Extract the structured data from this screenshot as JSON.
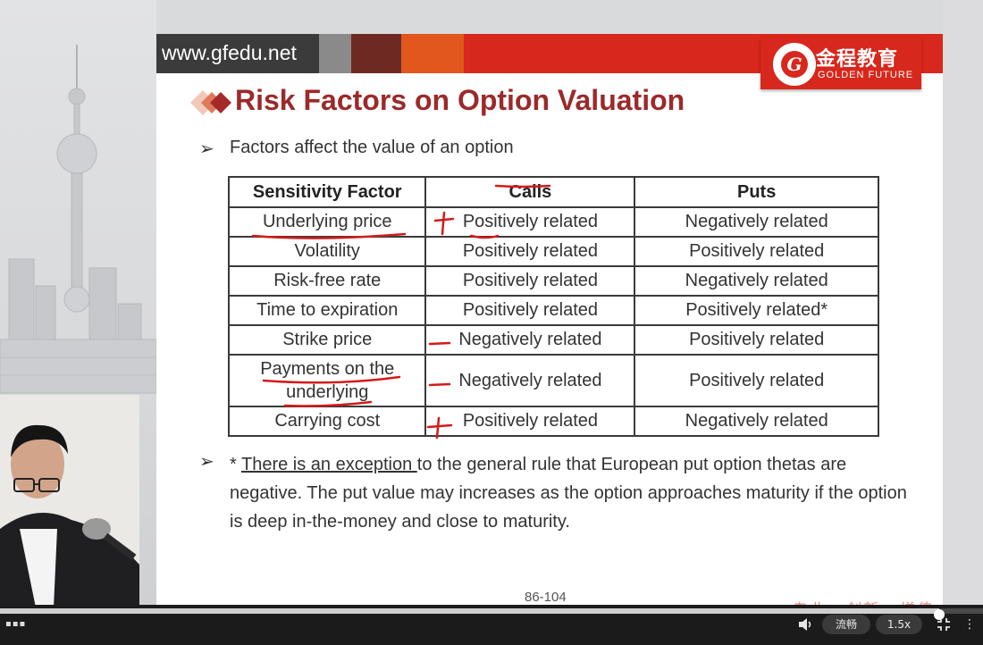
{
  "header": {
    "url": "www.gfedu.net",
    "logo_cn": "金程教育",
    "logo_en": "GOLDEN FUTURE",
    "logo_mark": "G"
  },
  "slide": {
    "title": "Risk Factors on Option Valuation",
    "intro": "Factors affect the value of an option",
    "table": {
      "headers": [
        "Sensitivity Factor",
        "Calls",
        "Puts"
      ],
      "rows": [
        [
          "Underlying price",
          "Positively related",
          "Negatively related"
        ],
        [
          "Volatility",
          "Positively related",
          "Positively related"
        ],
        [
          "Risk-free rate",
          "Positively related",
          "Negatively related"
        ],
        [
          "Time to expiration",
          "Positively related",
          "Positively related*"
        ],
        [
          "Strike price",
          "Negatively related",
          "Positively related"
        ],
        [
          "Payments on the underlying",
          "Negatively related",
          "Positively related"
        ],
        [
          "Carrying cost",
          "Positively related",
          "Negatively related"
        ]
      ]
    },
    "note_prefix": "* ",
    "note_underlined": "There is an exception ",
    "note_rest": "to the general rule that European put option thetas are negative. The put value may increases as the option approaches maturity if the option is deep in-the-money and close to maturity.",
    "page_number": "86-104",
    "slogan": "专业 · 创新 · 增值"
  },
  "player": {
    "quality_label": "流畅",
    "speed_label": "1.5x",
    "progress_fraction": 0.955
  },
  "colors": {
    "brand_red": "#d8271c",
    "title_red": "#9b2a2a",
    "ink_red": "#d41a1a"
  }
}
